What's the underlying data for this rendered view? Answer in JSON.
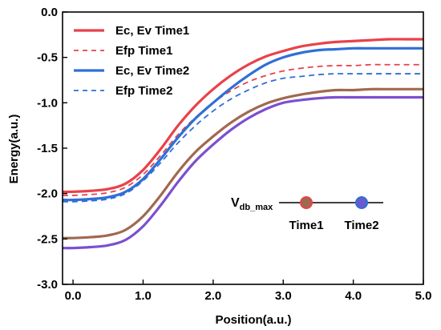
{
  "chart_data": {
    "type": "line",
    "title": "",
    "xlabel": "Position(a.u.)",
    "ylabel": "Energy(a.u.)",
    "xlim": [
      -0.15,
      5.0
    ],
    "ylim": [
      -3.0,
      0.0
    ],
    "xticks": [
      "0.0",
      "1.0",
      "2.0",
      "3.0",
      "4.0",
      "5.0"
    ],
    "yticks": [
      "0.0",
      "-0.5",
      "-1.0",
      "-1.5",
      "-2.0",
      "-2.5",
      "-3.0"
    ],
    "legend_position": "top-left",
    "x": [
      -0.15,
      0.0,
      0.25,
      0.5,
      0.75,
      1.0,
      1.25,
      1.5,
      1.75,
      2.0,
      2.25,
      2.5,
      2.75,
      3.0,
      3.25,
      3.5,
      3.75,
      4.0,
      4.25,
      4.5,
      4.75,
      5.0
    ],
    "series": [
      {
        "name": "Ec, Ev Time1",
        "legend_group": "Ec, Ev Time1",
        "style": "solid",
        "color": "#e8424a",
        "values": [
          -1.98,
          -1.98,
          -1.97,
          -1.95,
          -1.89,
          -1.74,
          -1.51,
          -1.25,
          -1.03,
          -0.85,
          -0.7,
          -0.58,
          -0.49,
          -0.43,
          -0.38,
          -0.35,
          -0.33,
          -0.32,
          -0.31,
          -0.3,
          -0.3,
          -0.3
        ]
      },
      {
        "name": "",
        "legend_group": "Ec, Ev Time1",
        "style": "solid",
        "color": "#a0694f",
        "values": [
          -2.49,
          -2.49,
          -2.48,
          -2.46,
          -2.4,
          -2.25,
          -2.02,
          -1.76,
          -1.54,
          -1.37,
          -1.22,
          -1.1,
          -1.01,
          -0.95,
          -0.91,
          -0.88,
          -0.86,
          -0.86,
          -0.85,
          -0.85,
          -0.85,
          -0.85
        ]
      },
      {
        "name": "Efp Time1",
        "legend_group": "Efp Time1",
        "style": "dashed",
        "color": "#e8424a",
        "values": [
          -2.02,
          -2.02,
          -2.01,
          -1.99,
          -1.93,
          -1.79,
          -1.58,
          -1.35,
          -1.16,
          -1.0,
          -0.87,
          -0.77,
          -0.7,
          -0.65,
          -0.62,
          -0.6,
          -0.59,
          -0.59,
          -0.58,
          -0.58,
          -0.58,
          -0.58
        ]
      },
      {
        "name": "Ec, Ev Time2",
        "legend_group": "Ec, Ev Time2",
        "style": "solid",
        "color": "#2f6fd6",
        "values": [
          -2.07,
          -2.07,
          -2.06,
          -2.04,
          -1.98,
          -1.84,
          -1.62,
          -1.38,
          -1.17,
          -1.0,
          -0.84,
          -0.7,
          -0.58,
          -0.5,
          -0.45,
          -0.42,
          -0.41,
          -0.4,
          -0.4,
          -0.4,
          -0.4,
          -0.4
        ]
      },
      {
        "name": "",
        "legend_group": "Ec, Ev Time2",
        "style": "solid",
        "color": "#7b4fd0",
        "values": [
          -2.6,
          -2.6,
          -2.59,
          -2.57,
          -2.51,
          -2.36,
          -2.13,
          -1.87,
          -1.64,
          -1.46,
          -1.3,
          -1.17,
          -1.07,
          -1.0,
          -0.97,
          -0.95,
          -0.94,
          -0.94,
          -0.94,
          -0.94,
          -0.94,
          -0.94
        ]
      },
      {
        "name": "Efp Time2",
        "legend_group": "Efp Time2",
        "style": "dashed",
        "color": "#2f6fd6",
        "values": [
          -2.09,
          -2.09,
          -2.08,
          -2.06,
          -2.0,
          -1.86,
          -1.66,
          -1.44,
          -1.25,
          -1.09,
          -0.96,
          -0.86,
          -0.78,
          -0.73,
          -0.71,
          -0.69,
          -0.68,
          -0.68,
          -0.68,
          -0.68,
          -0.68,
          -0.68
        ]
      }
    ],
    "legend": [
      {
        "label": "Ec, Ev Time1",
        "style": "solid",
        "color": "#e8424a"
      },
      {
        "label": "Efp Time1",
        "style": "dashed",
        "color": "#e8424a"
      },
      {
        "label": "Ec, Ev Time2",
        "style": "solid",
        "color": "#2f6fd6"
      },
      {
        "label": "Efp Time2",
        "style": "dashed",
        "color": "#2f6fd6"
      }
    ],
    "inset": {
      "label_main": "V",
      "label_sub": "db_max",
      "markers": [
        {
          "label": "Time1",
          "fill": "#9e6a4f",
          "ring": "#e8424a"
        },
        {
          "label": "Time2",
          "fill": "#6a5acd",
          "ring": "#2f6fd6"
        }
      ]
    }
  }
}
